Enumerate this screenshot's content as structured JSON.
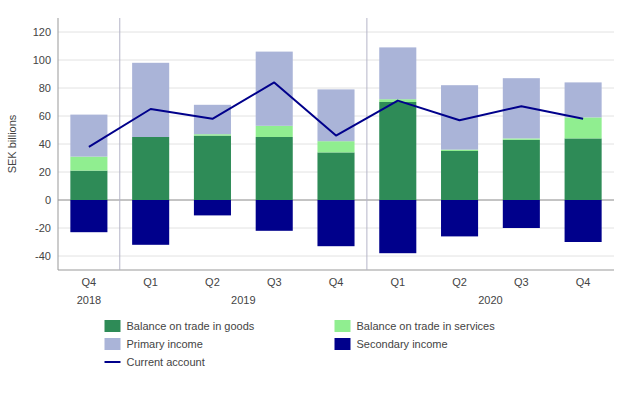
{
  "chart_data": {
    "type": "bar",
    "stacked": true,
    "y_label": "SEK billions",
    "categories": [
      "Q4",
      "Q1",
      "Q2",
      "Q3",
      "Q4",
      "Q1",
      "Q2",
      "Q3",
      "Q4"
    ],
    "category_groups": [
      {
        "label": "2018",
        "count": 1
      },
      {
        "label": "2019",
        "count": 4
      },
      {
        "label": "2020",
        "count": 4
      }
    ],
    "series": [
      {
        "name": "Balance on trade in goods",
        "type": "bar",
        "color": "#2e8b57",
        "values": [
          21,
          45,
          46,
          45,
          34,
          70,
          35,
          43,
          44
        ]
      },
      {
        "name": "Balance on trade in services",
        "type": "bar",
        "color": "#90ee90",
        "values": [
          10,
          0,
          1,
          8,
          8,
          2,
          1,
          1,
          15
        ]
      },
      {
        "name": "Primary income",
        "type": "bar",
        "color": "#aab4d8",
        "values": [
          30,
          53,
          21,
          53,
          37,
          37,
          46,
          43,
          25
        ]
      },
      {
        "name": "Secondary income",
        "type": "bar",
        "color": "#00008b",
        "values": [
          -23,
          -32,
          -11,
          -22,
          -33,
          -38,
          -26,
          -20,
          -30
        ]
      },
      {
        "name": "Current account",
        "type": "line",
        "color": "#00008b",
        "values": [
          38,
          65,
          58,
          84,
          46,
          71,
          57,
          67,
          58
        ]
      }
    ],
    "ylim": [
      -50,
      130
    ],
    "yticks": [
      -40,
      -20,
      0,
      20,
      40,
      60,
      80,
      100,
      120
    ],
    "grid": true
  }
}
